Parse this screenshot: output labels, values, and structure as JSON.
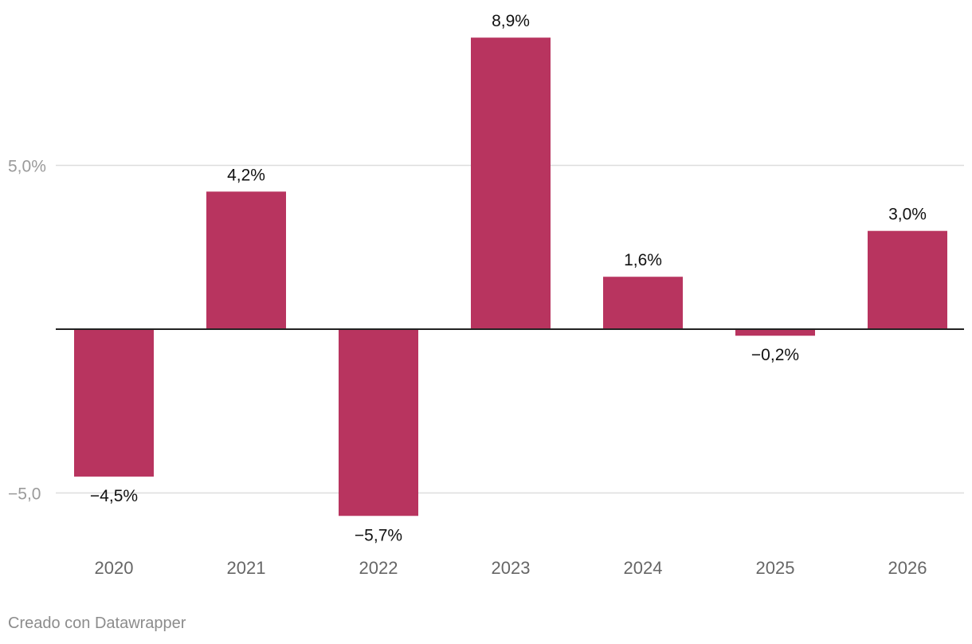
{
  "chart_data": {
    "type": "bar",
    "categories": [
      "2020",
      "2021",
      "2022",
      "2023",
      "2024",
      "2025",
      "2026"
    ],
    "values": [
      -4.5,
      4.2,
      -5.7,
      8.9,
      1.6,
      -0.2,
      3.0
    ],
    "data_labels": [
      "−4,5%",
      "4,2%",
      "−5,7%",
      "8,9%",
      "1,6%",
      "−0,2%",
      "3,0%"
    ],
    "y_ticks": [
      {
        "value": 5,
        "label": "5,0%"
      },
      {
        "value": -5,
        "label": "−5,0"
      }
    ],
    "ylim": [
      -6.6,
      10
    ],
    "grid": true,
    "bar_color": "#b8345f",
    "title": "",
    "xlabel": "",
    "ylabel": ""
  },
  "footer": {
    "credit": "Creado con Datawrapper"
  }
}
